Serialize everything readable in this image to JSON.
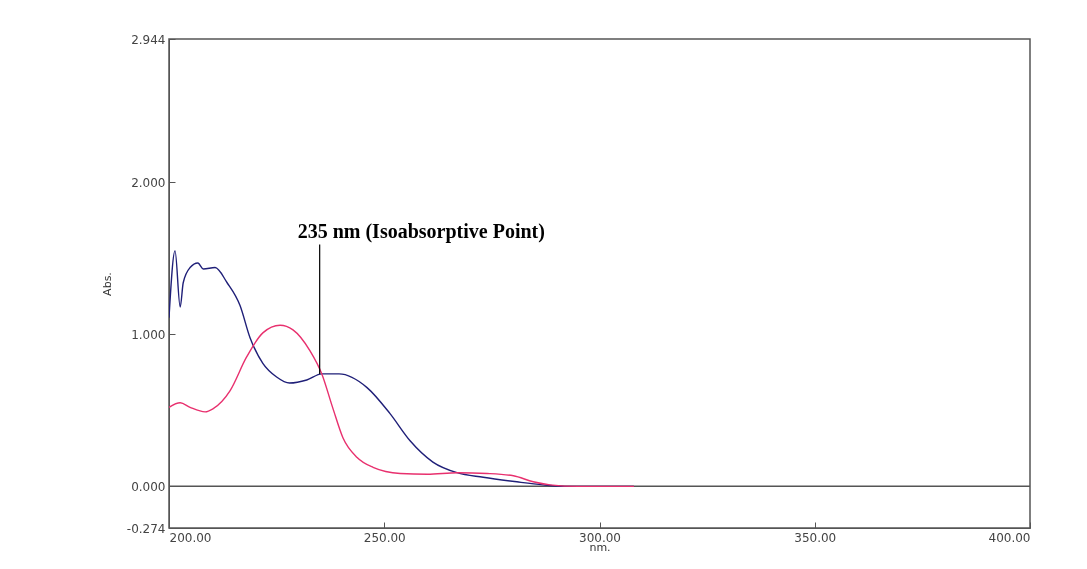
{
  "chart_data": {
    "type": "line",
    "xlabel": "nm.",
    "ylabel": "Abs.",
    "xlim": [
      200,
      400
    ],
    "ylim": [
      -0.274,
      2.944
    ],
    "xticks": [
      {
        "value": 200,
        "label": "200.00"
      },
      {
        "value": 250,
        "label": "250.00"
      },
      {
        "value": 300,
        "label": "300.00"
      },
      {
        "value": 350,
        "label": "350.00"
      },
      {
        "value": 400,
        "label": "400.00"
      }
    ],
    "yticks": [
      {
        "value": -0.274,
        "label": "-0.274"
      },
      {
        "value": 0,
        "label": "0.000"
      },
      {
        "value": 1,
        "label": "1.000"
      },
      {
        "value": 2,
        "label": "2.000"
      },
      {
        "value": 2.944,
        "label": "2.944"
      }
    ],
    "grid": false,
    "marker": "none",
    "line_style": "solid",
    "series": [
      {
        "color": "#1f1f78",
        "x": [
          200,
          201.4,
          202.6,
          203.3,
          204.9,
          206.7,
          208,
          210.7,
          213.5,
          216.5,
          218.8,
          221.8,
          225,
          228,
          232,
          235.5,
          239.5,
          246,
          251.3,
          256,
          261.3,
          266.9,
          273,
          280.8,
          286.9,
          292,
          300,
          308
        ],
        "values": [
          1.11,
          1.55,
          1.18,
          1.34,
          1.44,
          1.47,
          1.43,
          1.44,
          1.34,
          1.19,
          0.98,
          0.81,
          0.72,
          0.68,
          0.7,
          0.74,
          0.74,
          0.65,
          0.48,
          0.3,
          0.16,
          0.09,
          0.06,
          0.03,
          0.01,
          0,
          0,
          0
        ]
      },
      {
        "color": "#e8306e",
        "x": [
          200,
          202.6,
          204.9,
          208.4,
          210.2,
          214.2,
          218,
          221.8,
          225.8,
          228.8,
          232.8,
          235.5,
          238,
          240.4,
          243.7,
          247.4,
          253.7,
          260,
          267,
          273.9,
          280,
          284.6,
          288.5,
          295,
          308
        ],
        "values": [
          0.52,
          0.55,
          0.52,
          0.49,
          0.51,
          0.63,
          0.85,
          1.01,
          1.06,
          1.03,
          0.89,
          0.74,
          0.52,
          0.32,
          0.19,
          0.125,
          0.085,
          0.08,
          0.09,
          0.085,
          0.07,
          0.03,
          0.01,
          0,
          0
        ]
      }
    ],
    "ref_lines": [
      {
        "axis": "y",
        "value": 0,
        "color": "#555555"
      }
    ],
    "annotations": [
      {
        "text": "235 nm (Isoabsorptive Point)",
        "x": 235,
        "y": 0.74
      }
    ]
  }
}
